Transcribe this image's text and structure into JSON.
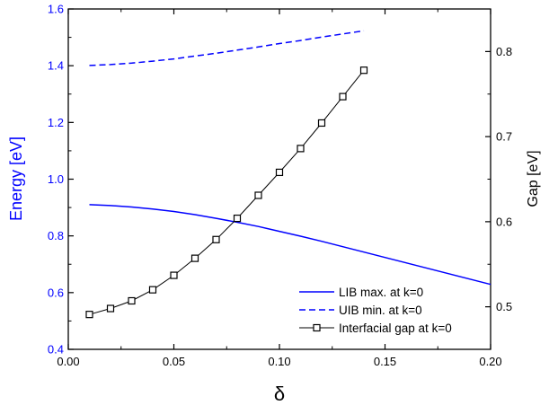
{
  "chart_data": {
    "type": "line",
    "xlabel": "δ",
    "ylabel_left": "Energy [eV]",
    "ylabel_right": "Gap [eV]",
    "xlim": [
      0.0,
      0.2
    ],
    "ylim_left": [
      0.4,
      1.6
    ],
    "ylim_right": [
      0.45,
      0.85
    ],
    "x_ticks": [
      "0.00",
      "0.05",
      "0.10",
      "0.15",
      "0.20"
    ],
    "y_ticks_left": [
      "0.4",
      "0.6",
      "0.8",
      "1.0",
      "1.2",
      "1.4",
      "1.6"
    ],
    "y_ticks_right": [
      "0.5",
      "0.6",
      "0.7",
      "0.8"
    ],
    "grid": false,
    "legend_position": "bottom-right",
    "colors": {
      "left_axis": "#0000ff",
      "lib": "#0000ff",
      "uib": "#0000ff",
      "gap": "#000000"
    },
    "series": [
      {
        "name": "LIB max. at k=0",
        "axis": "left",
        "style": "solid",
        "x": [
          0.01,
          0.02,
          0.03,
          0.04,
          0.05,
          0.06,
          0.07,
          0.08,
          0.09,
          0.1,
          0.11,
          0.12,
          0.13,
          0.14,
          0.15,
          0.16,
          0.17,
          0.18,
          0.19,
          0.2
        ],
        "y": [
          0.91,
          0.907,
          0.902,
          0.895,
          0.886,
          0.875,
          0.862,
          0.848,
          0.833,
          0.816,
          0.799,
          0.781,
          0.762,
          0.743,
          0.724,
          0.705,
          0.686,
          0.667,
          0.648,
          0.629
        ]
      },
      {
        "name": "UIB min. at k=0",
        "axis": "left",
        "style": "dashed",
        "x": [
          0.01,
          0.02,
          0.03,
          0.04,
          0.05,
          0.06,
          0.07,
          0.08,
          0.09,
          0.1,
          0.11,
          0.12,
          0.13,
          0.14
        ],
        "y": [
          1.401,
          1.404,
          1.409,
          1.416,
          1.424,
          1.434,
          1.444,
          1.455,
          1.466,
          1.478,
          1.489,
          1.501,
          1.512,
          1.523
        ]
      },
      {
        "name": "Interfacial gap at k=0",
        "axis": "right",
        "style": "solid-markers",
        "x": [
          0.01,
          0.02,
          0.03,
          0.04,
          0.05,
          0.06,
          0.07,
          0.08,
          0.09,
          0.1,
          0.11,
          0.12,
          0.13,
          0.14
        ],
        "y": [
          0.491,
          0.498,
          0.507,
          0.52,
          0.537,
          0.557,
          0.579,
          0.604,
          0.631,
          0.658,
          0.686,
          0.716,
          0.747,
          0.778
        ]
      }
    ]
  }
}
